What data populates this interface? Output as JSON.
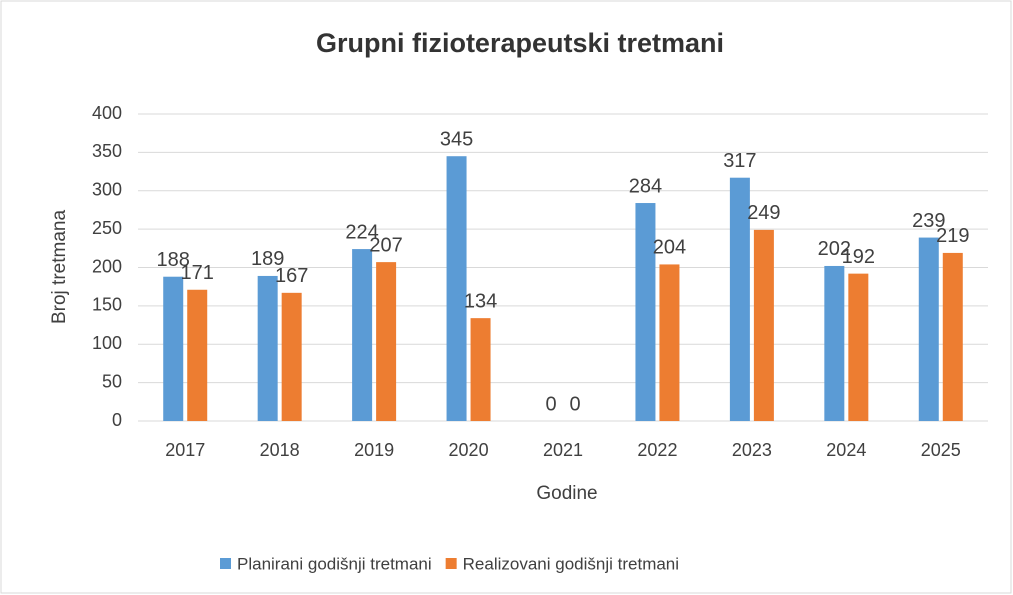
{
  "chart_data": {
    "type": "bar",
    "title": "Grupni fizioterapeutski tretmani",
    "x_label": "Godine",
    "y_label": "Broj tretmana",
    "categories": [
      "2017",
      "2018",
      "2019",
      "2020",
      "2021",
      "2022",
      "2023",
      "2024",
      "2025"
    ],
    "series": [
      {
        "name": "Planirani godišnji tretmani",
        "color": "#5b9bd5",
        "values": [
          188,
          189,
          224,
          345,
          0,
          284,
          317,
          202,
          239
        ]
      },
      {
        "name": "Realizovani godišnji tretmani",
        "color": "#ed7d31",
        "values": [
          171,
          167,
          207,
          134,
          0,
          204,
          249,
          192,
          219
        ]
      }
    ],
    "ylim": [
      0,
      400
    ],
    "yticks": [
      0,
      50,
      100,
      150,
      200,
      250,
      300,
      350,
      400
    ],
    "grid": true,
    "legend": "bottom"
  }
}
